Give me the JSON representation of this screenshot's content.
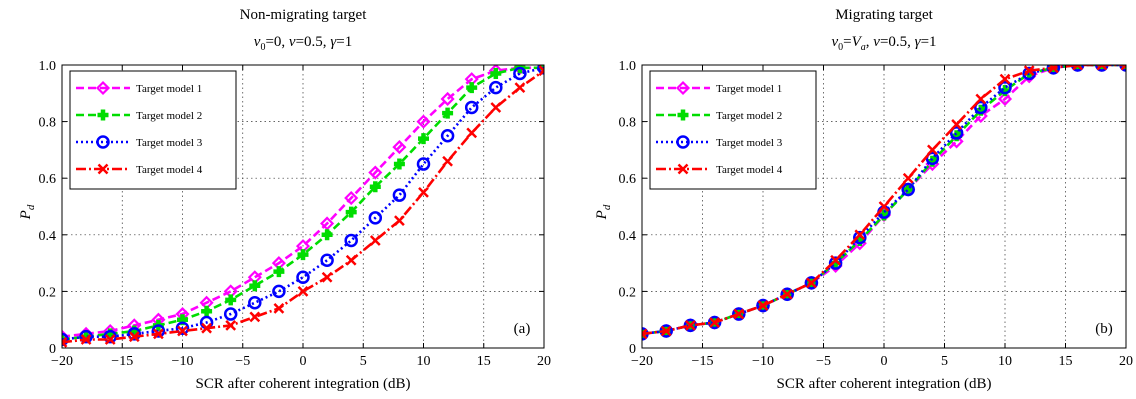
{
  "chart_data": [
    {
      "type": "line",
      "title": "Non-migrating target",
      "subtitle": "v0=0, v=0.5, γ=1",
      "xlabel": "SCR after coherent integration (dB)",
      "ylabel": "P_d",
      "xlim": [
        -20,
        20
      ],
      "ylim": [
        0,
        1
      ],
      "xticks": [
        -20,
        -15,
        -10,
        -5,
        0,
        5,
        10,
        15,
        20
      ],
      "yticks": [
        0,
        0.2,
        0.4,
        0.6,
        0.8,
        1.0
      ],
      "ytick_labels": [
        "0",
        "0.2",
        "0.4",
        "0.6",
        "0.8",
        "1.0"
      ],
      "grid": true,
      "legend_position": "top-left",
      "panel_label": "(a)",
      "x": [
        -20,
        -18,
        -16,
        -14,
        -12,
        -10,
        -8,
        -6,
        -4,
        -2,
        0,
        2,
        4,
        6,
        8,
        10,
        12,
        14,
        16,
        18,
        20
      ],
      "series": [
        {
          "name": "Target model 1",
          "color": "#ff00ff",
          "marker": "diamond",
          "dash": "8,4",
          "values": [
            0.04,
            0.05,
            0.06,
            0.08,
            0.1,
            0.12,
            0.16,
            0.2,
            0.25,
            0.3,
            0.36,
            0.44,
            0.53,
            0.62,
            0.71,
            0.8,
            0.88,
            0.95,
            0.98,
            0.99,
            0.99
          ]
        },
        {
          "name": "Target model 2",
          "color": "#00dd00",
          "marker": "plus",
          "dash": "8,4",
          "values": [
            0.03,
            0.04,
            0.05,
            0.06,
            0.08,
            0.1,
            0.13,
            0.17,
            0.22,
            0.27,
            0.33,
            0.4,
            0.48,
            0.57,
            0.65,
            0.74,
            0.83,
            0.92,
            0.97,
            0.99,
            0.99
          ]
        },
        {
          "name": "Target model 3",
          "color": "#0000ff",
          "marker": "circle",
          "dash": "2,3",
          "values": [
            0.03,
            0.04,
            0.04,
            0.05,
            0.06,
            0.07,
            0.09,
            0.12,
            0.16,
            0.2,
            0.25,
            0.31,
            0.38,
            0.46,
            0.54,
            0.65,
            0.75,
            0.85,
            0.92,
            0.97,
            0.99
          ]
        },
        {
          "name": "Target model 4",
          "color": "#ff0000",
          "marker": "x",
          "dash": "10,3,2,3",
          "values": [
            0.02,
            0.03,
            0.03,
            0.04,
            0.05,
            0.06,
            0.07,
            0.08,
            0.11,
            0.14,
            0.2,
            0.25,
            0.31,
            0.38,
            0.45,
            0.55,
            0.66,
            0.76,
            0.85,
            0.92,
            0.98
          ]
        }
      ]
    },
    {
      "type": "line",
      "title": "Migrating target",
      "subtitle": "v0=Va, v=0.5, γ=1",
      "xlabel": "SCR after coherent integration (dB)",
      "ylabel": "P_d",
      "xlim": [
        -20,
        20
      ],
      "ylim": [
        0,
        1
      ],
      "xticks": [
        -20,
        -15,
        -10,
        -5,
        0,
        5,
        10,
        15,
        20
      ],
      "yticks": [
        0,
        0.2,
        0.4,
        0.6,
        0.8,
        1.0
      ],
      "ytick_labels": [
        "0",
        "0.2",
        "0.4",
        "0.6",
        "0.8",
        "1.0"
      ],
      "grid": true,
      "legend_position": "top-left",
      "panel_label": "(b)",
      "x": [
        -20,
        -18,
        -16,
        -14,
        -12,
        -10,
        -8,
        -6,
        -4,
        -2,
        0,
        2,
        4,
        6,
        8,
        10,
        12,
        14,
        16,
        18,
        20
      ],
      "series": [
        {
          "name": "Target model 1",
          "color": "#ff00ff",
          "marker": "diamond",
          "dash": "8,4",
          "values": [
            0.05,
            0.06,
            0.08,
            0.09,
            0.12,
            0.15,
            0.19,
            0.23,
            0.29,
            0.37,
            0.47,
            0.56,
            0.65,
            0.73,
            0.82,
            0.88,
            0.96,
            0.99,
            1.0,
            1.0,
            1.0
          ]
        },
        {
          "name": "Target model 2",
          "color": "#00dd00",
          "marker": "plus",
          "dash": "8,4",
          "values": [
            0.05,
            0.06,
            0.08,
            0.09,
            0.12,
            0.15,
            0.19,
            0.23,
            0.3,
            0.38,
            0.47,
            0.56,
            0.66,
            0.75,
            0.84,
            0.91,
            0.97,
            0.99,
            1.0,
            1.0,
            1.0
          ]
        },
        {
          "name": "Target model 3",
          "color": "#0000ff",
          "marker": "circle",
          "dash": "2,3",
          "values": [
            0.05,
            0.06,
            0.08,
            0.09,
            0.12,
            0.15,
            0.19,
            0.23,
            0.3,
            0.39,
            0.48,
            0.56,
            0.67,
            0.76,
            0.85,
            0.92,
            0.97,
            0.99,
            1.0,
            1.0,
            1.0
          ]
        },
        {
          "name": "Target model 4",
          "color": "#ff0000",
          "marker": "x",
          "dash": "10,3,2,3",
          "values": [
            0.05,
            0.06,
            0.08,
            0.09,
            0.12,
            0.15,
            0.19,
            0.23,
            0.31,
            0.4,
            0.5,
            0.6,
            0.7,
            0.79,
            0.88,
            0.95,
            0.98,
            0.99,
            1.0,
            1.0,
            1.0
          ]
        }
      ]
    }
  ]
}
